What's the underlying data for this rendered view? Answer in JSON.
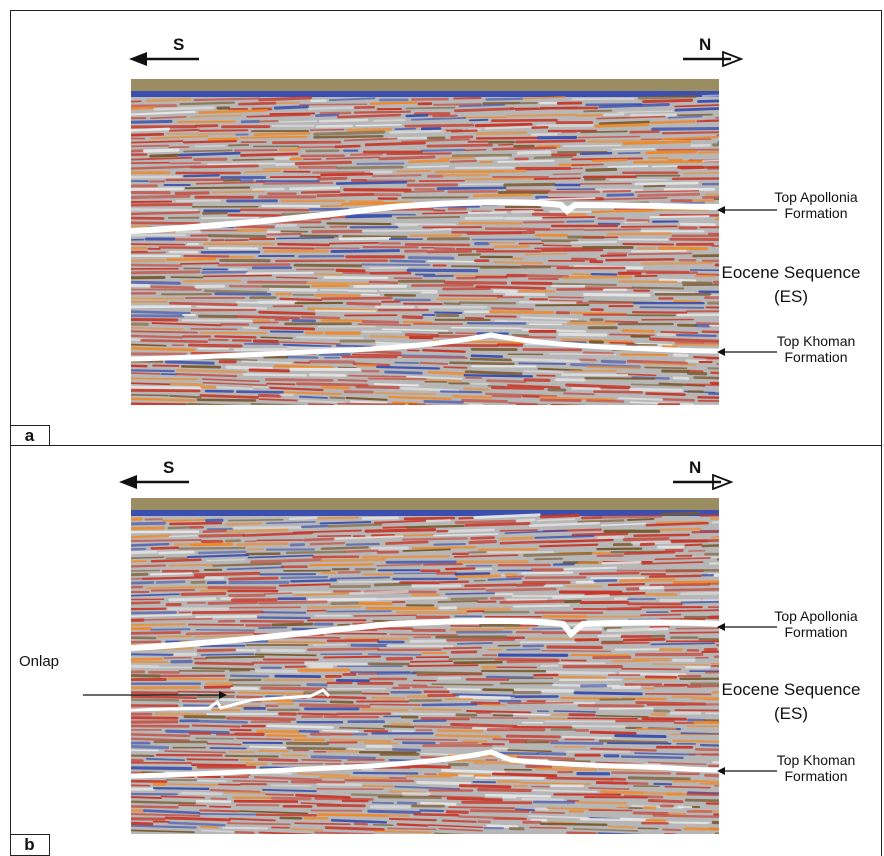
{
  "panels": [
    {
      "tag": "a",
      "direction_left": "S",
      "direction_right": "N",
      "horizons": {
        "top": {
          "line1": "Top Apollonia",
          "line2": "Formation"
        },
        "bottom": {
          "line1": "Top Khoman",
          "line2": "Formation"
        }
      },
      "sequence": {
        "line1": "Eocene Sequence",
        "line2": "(ES)"
      }
    },
    {
      "tag": "b",
      "direction_left": "S",
      "direction_right": "N",
      "horizons": {
        "top": {
          "line1": "Top Apollonia",
          "line2": "Formation"
        },
        "bottom": {
          "line1": "Top Khoman",
          "line2": "Formation"
        }
      },
      "sequence": {
        "line1": "Eocene Sequence",
        "line2": "(ES)"
      },
      "annotation": "Onlap"
    }
  ],
  "colors": {
    "seismic_base": "#b7b7b7",
    "reflector_red": "#c9382a",
    "reflector_orange": "#f08a2a",
    "reflector_blue": "#3a4fb0",
    "reflector_brown": "#7a5a2e",
    "horizon": "#ffffff"
  }
}
